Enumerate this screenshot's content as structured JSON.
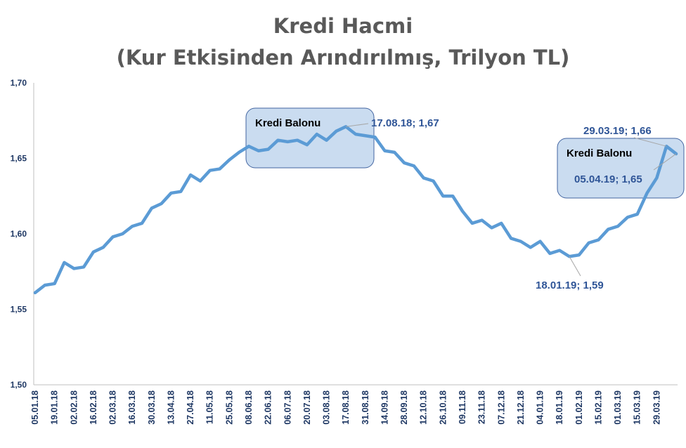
{
  "chart_data": {
    "type": "line",
    "title": "Kredi Hacmi",
    "subtitle": "(Kur Etkisinden Arındırılmış, Trilyon TL)",
    "xlabel": "",
    "ylabel": "",
    "ylim": [
      1.5,
      1.7
    ],
    "yticks": [
      "1,50",
      "1,55",
      "1,60",
      "1,65",
      "1,70"
    ],
    "ytick_values": [
      1.5,
      1.55,
      1.6,
      1.65,
      1.7
    ],
    "grid": false,
    "line_color": "#5b9bd5",
    "x_tick_labels": [
      "05.01.18",
      "19.01.18",
      "02.02.18",
      "16.02.18",
      "02.03.18",
      "16.03.18",
      "30.03.18",
      "13.04.18",
      "27.04.18",
      "11.05.18",
      "25.05.18",
      "08.06.18",
      "22.06.18",
      "06.07.18",
      "20.07.18",
      "03.08.18",
      "17.08.18",
      "31.08.18",
      "14.09.18",
      "28.09.18",
      "12.10.18",
      "26.10.18",
      "09.11.18",
      "23.11.18",
      "07.12.18",
      "21.12.18",
      "04.01.19",
      "18.01.19",
      "01.02.19",
      "15.02.19",
      "01.03.19",
      "15.03.19",
      "29.03.19"
    ],
    "values": [
      1.561,
      1.566,
      1.567,
      1.581,
      1.577,
      1.578,
      1.588,
      1.591,
      1.598,
      1.6,
      1.605,
      1.607,
      1.617,
      1.62,
      1.627,
      1.628,
      1.639,
      1.635,
      1.642,
      1.643,
      1.649,
      1.654,
      1.658,
      1.655,
      1.656,
      1.662,
      1.661,
      1.662,
      1.659,
      1.666,
      1.662,
      1.668,
      1.671,
      1.666,
      1.665,
      1.664,
      1.655,
      1.654,
      1.647,
      1.645,
      1.637,
      1.635,
      1.625,
      1.625,
      1.615,
      1.607,
      1.609,
      1.604,
      1.607,
      1.597,
      1.595,
      1.591,
      1.595,
      1.587,
      1.589,
      1.585,
      1.586,
      1.594,
      1.596,
      1.603,
      1.605,
      1.611,
      1.613,
      1.627,
      1.637,
      1.658,
      1.653
    ],
    "annotations": [
      {
        "label": "17.08.18; 1,67",
        "index": 32
      },
      {
        "label": "18.01.19; 1,59",
        "index": 55
      },
      {
        "label": "29.03.19; 1,66",
        "index": 65
      },
      {
        "label": "05.04.19; 1,65",
        "index": 66
      }
    ],
    "boxes": [
      {
        "label": "Kredi Balonu"
      },
      {
        "label": "Kredi Balonu"
      }
    ]
  }
}
